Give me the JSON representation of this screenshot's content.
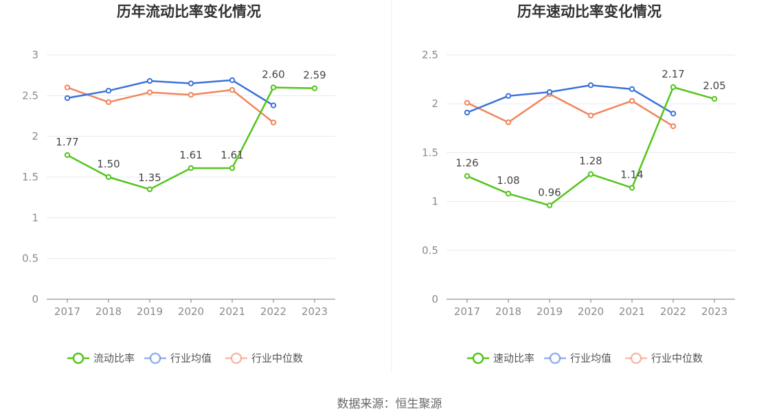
{
  "chart_data": [
    {
      "type": "line",
      "title": "历年流动比率变化情况",
      "categories": [
        "2017",
        "2018",
        "2019",
        "2020",
        "2021",
        "2022",
        "2023"
      ],
      "y_ticks": [
        "0",
        "0.5",
        "1",
        "1.5",
        "2",
        "2.5",
        "3"
      ],
      "ylim": [
        0,
        3
      ],
      "grid": true,
      "legend_position": "bottom-center",
      "series": [
        {
          "name": "流动比率",
          "color": "#52c41a",
          "values": [
            1.77,
            1.5,
            1.35,
            1.61,
            1.61,
            2.6,
            2.59
          ],
          "labels": [
            "1.77",
            "1.50",
            "1.35",
            "1.61",
            "1.61",
            "2.60",
            "2.59"
          ]
        },
        {
          "name": "行业均值",
          "color": "#3a72d8",
          "values": [
            2.47,
            2.56,
            2.68,
            2.65,
            2.69,
            2.38,
            null
          ]
        },
        {
          "name": "行业中位数",
          "color": "#f0845c",
          "values": [
            2.6,
            2.42,
            2.54,
            2.51,
            2.57,
            2.17,
            null
          ]
        }
      ]
    },
    {
      "type": "line",
      "title": "历年速动比率变化情况",
      "categories": [
        "2017",
        "2018",
        "2019",
        "2020",
        "2021",
        "2022",
        "2023"
      ],
      "y_ticks": [
        "0",
        "0.5",
        "1",
        "1.5",
        "2",
        "2.5"
      ],
      "ylim": [
        0,
        2.5
      ],
      "grid": true,
      "legend_position": "bottom-center",
      "series": [
        {
          "name": "速动比率",
          "color": "#52c41a",
          "values": [
            1.26,
            1.08,
            0.96,
            1.28,
            1.14,
            2.17,
            2.05
          ],
          "labels": [
            "1.26",
            "1.08",
            "0.96",
            "1.28",
            "1.14",
            "2.17",
            "2.05"
          ]
        },
        {
          "name": "行业均值",
          "color": "#3a72d8",
          "values": [
            1.91,
            2.08,
            2.12,
            2.19,
            2.15,
            1.9,
            null
          ]
        },
        {
          "name": "行业中位数",
          "color": "#f0845c",
          "values": [
            2.01,
            1.81,
            2.1,
            1.88,
            2.03,
            1.77,
            null
          ]
        }
      ]
    }
  ],
  "footer": {
    "source": "数据来源：恒生聚源"
  }
}
